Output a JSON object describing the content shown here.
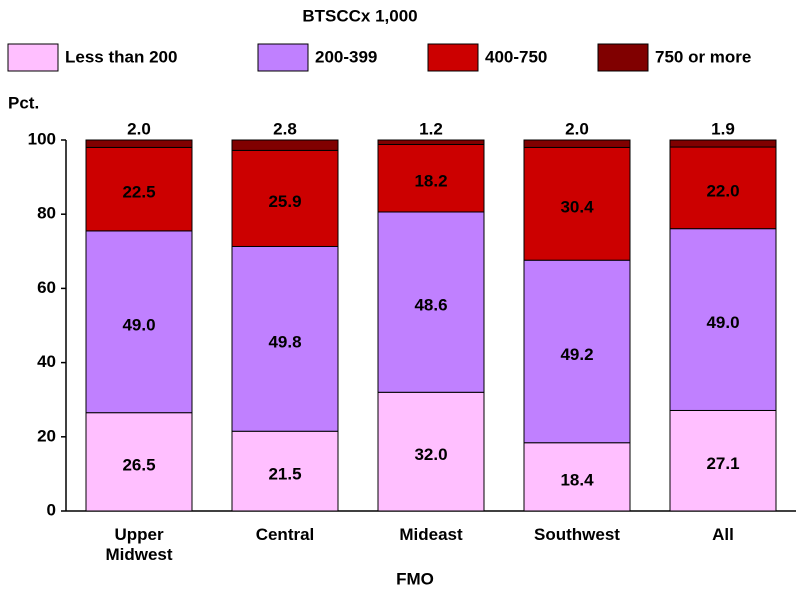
{
  "chart_data": {
    "type": "stacked-bar",
    "title": "BTSCCx 1,000",
    "y_label": "Pct.",
    "x_label": "FMO",
    "categories": [
      "Upper Midwest",
      "Central",
      "Mideast",
      "Southwest",
      "All"
    ],
    "ylim": [
      0,
      100
    ],
    "yticks": [
      0,
      20,
      40,
      60,
      80,
      100
    ],
    "series": [
      {
        "name": "Less than 200",
        "color": "#ffbfff",
        "values": [
          26.5,
          21.5,
          32.0,
          18.4,
          27.1
        ],
        "value_labels": [
          "26.5",
          "21.5",
          "32.0",
          "18.4",
          "27.1"
        ]
      },
      {
        "name": "200-399",
        "color": "#c080ff",
        "values": [
          49.0,
          49.8,
          48.6,
          49.2,
          49.0
        ],
        "value_labels": [
          "49.0",
          "49.8",
          "48.6",
          "49.2",
          "49.0"
        ]
      },
      {
        "name": "400-750",
        "color": "#cc0000",
        "values": [
          22.5,
          25.9,
          18.2,
          30.4,
          22.0
        ],
        "value_labels": [
          "22.5",
          "25.9",
          "18.2",
          "30.4",
          "22.0"
        ]
      },
      {
        "name": "750 or more",
        "color": "#800000",
        "values": [
          2.0,
          2.8,
          1.2,
          2.0,
          1.9
        ],
        "value_labels": [
          "2.0",
          "2.8",
          "1.2",
          "2.0",
          "1.9"
        ]
      }
    ]
  }
}
